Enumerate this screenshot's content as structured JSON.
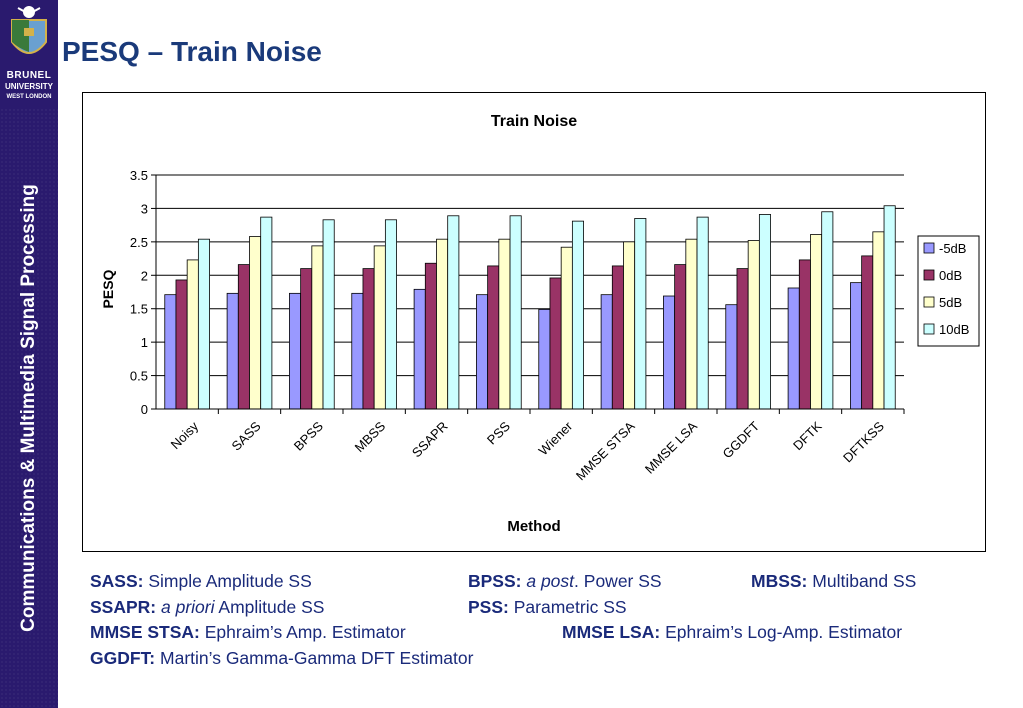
{
  "sidebar": {
    "logo_line1": "BRUNEL",
    "logo_line2": "UNIVERSITY",
    "logo_line3": "WEST LONDON",
    "vertical_title": "Communications & Multimedia Signal Processing"
  },
  "page": {
    "title": "PESQ – Train Noise"
  },
  "chart_data": {
    "type": "bar",
    "title": "Train Noise",
    "xlabel": "Method",
    "ylabel": "PESQ",
    "ylim": [
      0,
      3.5
    ],
    "yticks": [
      "0",
      "0.5",
      "1",
      "1.5",
      "2",
      "2.5",
      "3",
      "3.5"
    ],
    "grid": true,
    "legend_position": "right",
    "categories": [
      "Noisy",
      "SASS",
      "BPSS",
      "MBSS",
      "SSAPR",
      "PSS",
      "Wiener",
      "MMSE STSA",
      "MMSE LSA",
      "GGDFT",
      "DFTK",
      "DFTKSS"
    ],
    "series": [
      {
        "name": "-5dB",
        "color": "#9999ff",
        "values": [
          1.71,
          1.73,
          1.73,
          1.73,
          1.79,
          1.71,
          1.49,
          1.71,
          1.69,
          1.56,
          1.81,
          1.89
        ]
      },
      {
        "name": "0dB",
        "color": "#993366",
        "values": [
          1.93,
          2.16,
          2.1,
          2.1,
          2.18,
          2.14,
          1.96,
          2.14,
          2.16,
          2.1,
          2.23,
          2.29
        ]
      },
      {
        "name": "5dB",
        "color": "#ffffcc",
        "values": [
          2.23,
          2.58,
          2.44,
          2.44,
          2.54,
          2.54,
          2.42,
          2.5,
          2.54,
          2.52,
          2.61,
          2.65
        ]
      },
      {
        "name": "10dB",
        "color": "#ccffff",
        "values": [
          2.54,
          2.87,
          2.83,
          2.83,
          2.89,
          2.89,
          2.81,
          2.85,
          2.87,
          2.91,
          2.95,
          3.04
        ]
      }
    ]
  },
  "notes": {
    "sass_abbr": "SASS:",
    "sass_text": "Simple Amplitude SS",
    "bpss_abbr": "BPSS:",
    "bpss_italic": "a post",
    "bpss_text": ". Power SS",
    "mbss_abbr": "MBSS:",
    "mbss_text": "Multiband SS",
    "ssapr_abbr": "SSAPR:",
    "ssapr_italic": "a priori",
    "ssapr_text": "Amplitude SS",
    "pss_abbr": "PSS:",
    "pss_text": "Parametric SS",
    "mmse_stsa_abbr": "MMSE STSA:",
    "mmse_stsa_text": "Ephraim’s Amp. Estimator",
    "mmse_lsa_abbr": "MMSE LSA:",
    "mmse_lsa_text": "Ephraim’s Log-Amp. Estimator",
    "ggdft_abbr": "GGDFT:",
    "ggdft_text": "Martin’s Gamma-Gamma DFT Estimator"
  }
}
